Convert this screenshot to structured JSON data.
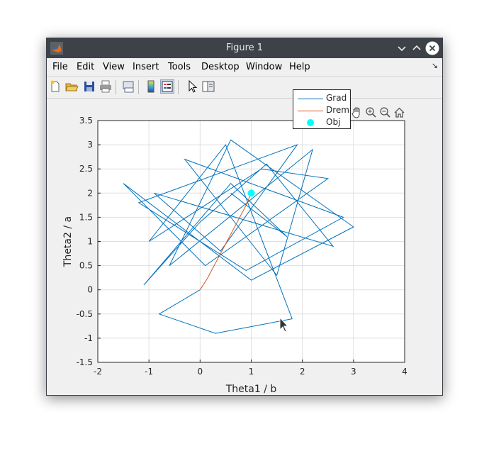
{
  "window": {
    "title": "Figure 1",
    "controls": [
      "minimize-icon",
      "maximize-icon",
      "close-icon"
    ]
  },
  "menubar": {
    "items": [
      {
        "label": "File",
        "mnemonic": "F"
      },
      {
        "label": "Edit",
        "mnemonic": "E"
      },
      {
        "label": "View",
        "mnemonic": "V"
      },
      {
        "label": "Insert",
        "mnemonic": "I"
      },
      {
        "label": "Tools",
        "mnemonic": "T"
      },
      {
        "label": "Desktop",
        "mnemonic": "D"
      },
      {
        "label": "Window",
        "mnemonic": "W"
      },
      {
        "label": "Help",
        "mnemonic": "H"
      }
    ],
    "dock_icon": "↘"
  },
  "toolbar": {
    "tools": [
      "new-figure-icon",
      "open-file-icon",
      "save-icon",
      "print-icon",
      "link-plot-icon",
      "colorbar-icon",
      "legend-icon",
      "edit-plot-icon",
      "property-inspector-icon"
    ],
    "active": "legend-icon"
  },
  "axes_toolbar": {
    "tools": [
      "brush-icon",
      "data-tip-icon",
      "data-cursor-icon",
      "pan-icon",
      "zoom-in-icon",
      "zoom-out-icon",
      "home-icon"
    ]
  },
  "colors": {
    "grad": "#0072bd",
    "drem": "#d95319",
    "obj": "#00ffff",
    "titlebar": "#3c4248"
  },
  "chart_data": {
    "type": "line",
    "xlabel": "Theta1 / b",
    "ylabel": "Theta2 / a",
    "xlim": [
      -2,
      4
    ],
    "ylim": [
      -1.5,
      3.5
    ],
    "xticks": [
      "-2",
      "-1",
      "0",
      "1",
      "2",
      "3",
      "4"
    ],
    "yticks": [
      "-1.5",
      "-1",
      "-0.5",
      "0",
      "0.5",
      "1",
      "1.5",
      "2",
      "2.5",
      "3",
      "3.5"
    ],
    "grid": true,
    "legend_position": "top-right",
    "series": [
      {
        "name": "Grad",
        "type": "line",
        "color": "#0072bd",
        "x": [
          0,
          -0.8,
          0.3,
          1.8,
          0.5,
          -1.0,
          1.2,
          2.5,
          0.1,
          -1.5,
          1.0,
          3.0,
          0.6,
          -0.6,
          2.2,
          1.5,
          -0.3,
          2.8,
          0.9,
          -1.2,
          1.9,
          0.4,
          -0.9,
          2.6,
          1.3,
          0.0,
          -1.1,
          0.6,
          1.7,
          0.6
        ],
        "y": [
          0,
          -0.5,
          -0.9,
          -0.6,
          3.0,
          1.0,
          2.5,
          2.3,
          0.5,
          2.2,
          0.2,
          1.3,
          3.1,
          0.5,
          2.9,
          0.3,
          2.7,
          1.5,
          0.4,
          1.8,
          3.0,
          0.8,
          2.0,
          0.9,
          2.6,
          1.4,
          0.1,
          2.2,
          1.1,
          2.0
        ]
      },
      {
        "name": "Drem",
        "type": "line",
        "color": "#d95319",
        "x": [
          0,
          0.15,
          0.3,
          0.45,
          0.6,
          0.75,
          0.9,
          1.0
        ],
        "y": [
          0,
          0.25,
          0.55,
          0.85,
          1.15,
          1.45,
          1.75,
          2.0
        ]
      },
      {
        "name": "Obj",
        "type": "scatter",
        "color": "#00ffff",
        "x": [
          1
        ],
        "y": [
          2
        ]
      }
    ]
  }
}
